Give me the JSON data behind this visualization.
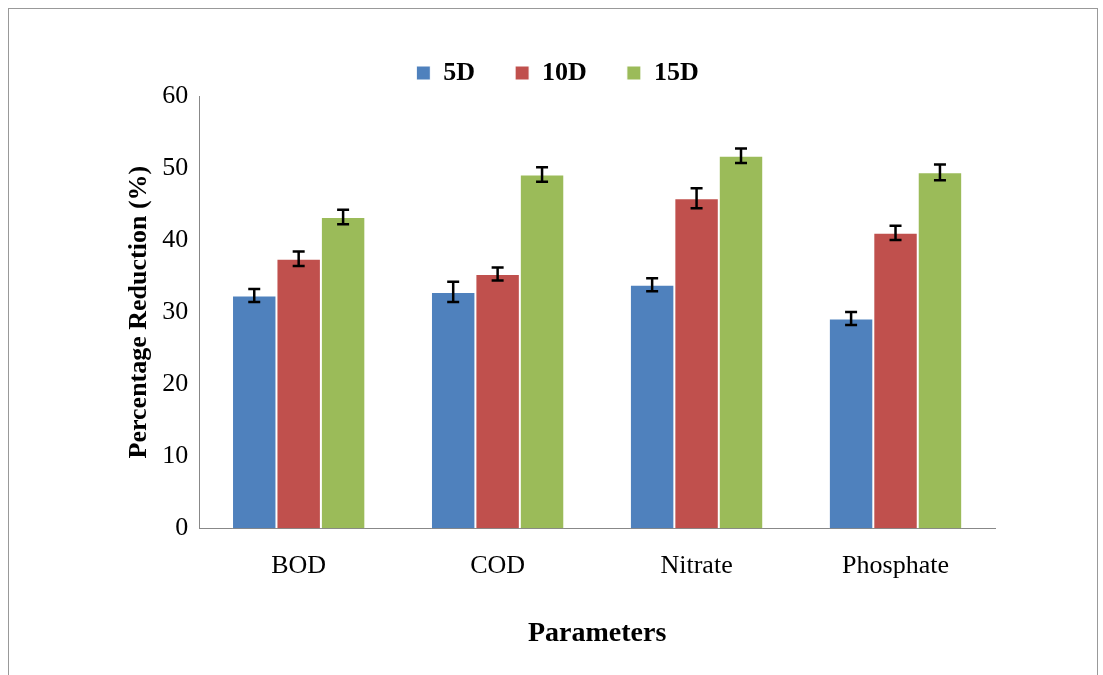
{
  "chart_data": {
    "type": "bar",
    "xlabel": "Parameters",
    "ylabel": "Percentage Reduction (%)",
    "categories": [
      "BOD",
      "COD",
      "Nitrate",
      "Phosphate"
    ],
    "series": [
      {
        "name": "5D",
        "color": "#4f81bd",
        "values": [
          32.3,
          32.8,
          33.8,
          29.1
        ],
        "errors": [
          0.9,
          1.4,
          0.9,
          0.9
        ]
      },
      {
        "name": "10D",
        "color": "#c0504d",
        "values": [
          37.4,
          35.3,
          45.8,
          41.0
        ],
        "errors": [
          1.0,
          0.9,
          1.4,
          1.0
        ]
      },
      {
        "name": "15D",
        "color": "#9bbb59",
        "values": [
          43.2,
          49.1,
          51.7,
          49.4
        ],
        "errors": [
          1.0,
          1.0,
          1.0,
          1.1
        ]
      }
    ],
    "ylim": [
      0,
      60
    ],
    "yticks": [
      0,
      10,
      20,
      30,
      40,
      50,
      60
    ],
    "grid": false,
    "legend": "top"
  }
}
